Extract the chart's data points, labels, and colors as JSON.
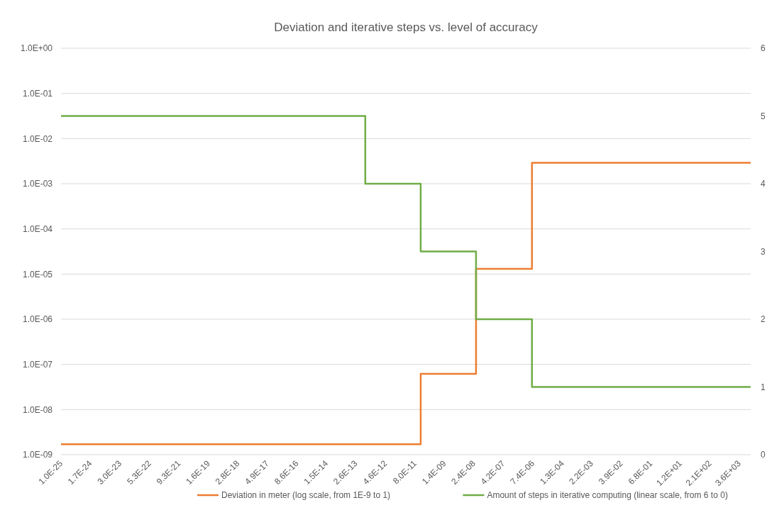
{
  "chart_data": {
    "type": "step",
    "title": "Deviation and iterative steps vs. level of accuracy",
    "log": "xy",
    "grid": "y",
    "legend": "bottom",
    "line_style": "solid",
    "xlim": [
      1e-25,
      11000.0
    ],
    "xticks": [
      {
        "value": 1e-25,
        "label": "1.0E-25"
      },
      {
        "value": 1.7e-24,
        "label": "1.7E-24"
      },
      {
        "value": 3e-23,
        "label": "3.0E-23"
      },
      {
        "value": 5.3e-22,
        "label": "5.3E-22"
      },
      {
        "value": 9.3e-21,
        "label": "9.3E-21"
      },
      {
        "value": 1.6e-19,
        "label": "1.6E-19"
      },
      {
        "value": 2.8e-18,
        "label": "2.8E-18"
      },
      {
        "value": 4.9e-17,
        "label": "4.9E-17"
      },
      {
        "value": 8.6e-16,
        "label": "8.6E-16"
      },
      {
        "value": 1.5e-14,
        "label": "1.5E-14"
      },
      {
        "value": 2.6e-13,
        "label": "2.6E-13"
      },
      {
        "value": 4.6e-12,
        "label": "4.6E-12"
      },
      {
        "value": 8e-11,
        "label": "8.0E-11"
      },
      {
        "value": 1.4e-09,
        "label": "1.4E-09"
      },
      {
        "value": 2.4e-08,
        "label": "2.4E-08"
      },
      {
        "value": 4.2e-07,
        "label": "4.2E-07"
      },
      {
        "value": 7.4e-06,
        "label": "7.4E-06"
      },
      {
        "value": 0.00013,
        "label": "1.3E-04"
      },
      {
        "value": 0.0022,
        "label": "2.2E-03"
      },
      {
        "value": 0.039,
        "label": "3.9E-02"
      },
      {
        "value": 0.68,
        "label": "6.8E-01"
      },
      {
        "value": 12,
        "label": "1.2E+01"
      },
      {
        "value": 210,
        "label": "2.1E+02"
      },
      {
        "value": 3600,
        "label": "3.6E+03"
      }
    ],
    "ylim": [
      1e-09,
      1
    ],
    "yticks": [
      {
        "value": 1e-09,
        "label": "1.0E-09"
      },
      {
        "value": 1e-08,
        "label": "1.0E-08"
      },
      {
        "value": 1e-07,
        "label": "1.0E-07"
      },
      {
        "value": 1e-06,
        "label": "1.0E-06"
      },
      {
        "value": 1e-05,
        "label": "1.0E-05"
      },
      {
        "value": 0.0001,
        "label": "1.0E-04"
      },
      {
        "value": 0.001,
        "label": "1.0E-03"
      },
      {
        "value": 0.01,
        "label": "1.0E-02"
      },
      {
        "value": 0.1,
        "label": "1.0E-01"
      },
      {
        "value": 1,
        "label": "1.0E+00"
      }
    ],
    "y2lim": [
      0,
      6
    ],
    "y2ticks": [
      0,
      1,
      2,
      3,
      4,
      5,
      6
    ],
    "series": [
      {
        "name": "Deviation in meter (log scale, from 1E-9 to 1)",
        "color": "#ed7d31",
        "x": [
          1e-25,
          1.4e-10,
          3e-08,
          6.8e-06,
          11000.0
        ],
        "values": [
          1.7e-09,
          6.2e-08,
          1.3e-05,
          0.0029,
          0.0029
        ]
      },
      {
        "name": "Amount of steps in iterative computing (linear scale, from 6 to 0)",
        "color": "#70ad47",
        "axis": "y2",
        "x": [
          1e-25,
          6.5e-13,
          1.4e-10,
          3e-08,
          6.8e-06,
          11000.0
        ],
        "values": [
          5,
          4,
          3,
          2,
          1,
          1
        ]
      }
    ]
  }
}
